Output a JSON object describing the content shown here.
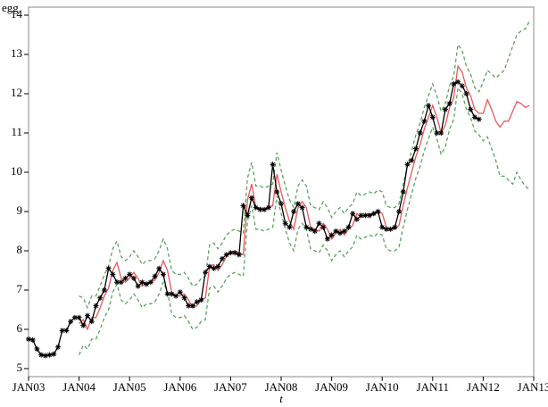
{
  "chart_data": {
    "type": "line",
    "x_label": "t",
    "y_label": "egg",
    "categories": [
      "JAN03",
      null,
      null,
      null,
      null,
      null,
      null,
      null,
      null,
      null,
      null,
      null,
      "JAN04",
      null,
      null,
      null,
      null,
      null,
      null,
      null,
      null,
      null,
      null,
      null,
      "JAN05",
      null,
      null,
      null,
      null,
      null,
      null,
      null,
      null,
      null,
      null,
      null,
      "JAN06",
      null,
      null,
      null,
      null,
      null,
      null,
      null,
      null,
      null,
      null,
      null,
      "JAN07",
      null,
      null,
      null,
      null,
      null,
      null,
      null,
      null,
      null,
      null,
      null,
      "JAN08",
      null,
      null,
      null,
      null,
      null,
      null,
      null,
      null,
      null,
      null,
      null,
      "JAN09",
      null,
      null,
      null,
      null,
      null,
      null,
      null,
      null,
      null,
      null,
      null,
      "JAN10",
      null,
      null,
      null,
      null,
      null,
      null,
      null,
      null,
      null,
      null,
      null,
      "JAN11",
      null,
      null,
      null,
      null,
      null,
      null,
      null,
      null,
      null,
      null,
      null,
      "JAN12",
      null,
      null,
      null,
      null,
      null,
      null,
      null,
      null,
      null,
      null,
      null,
      "JAN13"
    ],
    "ylim": [
      4.8,
      14.2
    ],
    "yticks": [
      5,
      6,
      7,
      8,
      9,
      10,
      11,
      12,
      13,
      14
    ],
    "series": [
      {
        "color": "#000000",
        "marker": "star",
        "dashed": false,
        "values": [
          5.75,
          5.73,
          5.5,
          5.35,
          5.33,
          5.35,
          5.37,
          5.55,
          5.97,
          5.97,
          6.2,
          6.3,
          6.3,
          6.1,
          6.35,
          6.2,
          6.6,
          6.8,
          7.0,
          7.55,
          7.4,
          7.2,
          7.2,
          7.3,
          7.4,
          7.3,
          7.1,
          7.2,
          7.15,
          7.2,
          7.35,
          7.55,
          7.4,
          6.9,
          6.9,
          6.85,
          6.95,
          6.8,
          6.6,
          6.6,
          6.7,
          6.75,
          7.45,
          7.6,
          7.55,
          7.6,
          7.8,
          7.9,
          7.95,
          7.95,
          7.9,
          9.15,
          8.9,
          9.35,
          9.1,
          9.05,
          9.05,
          9.1,
          10.2,
          9.5,
          9.2,
          8.7,
          8.6,
          9.0,
          9.2,
          9.1,
          8.6,
          8.55,
          8.5,
          8.7,
          8.6,
          8.3,
          8.4,
          8.5,
          8.45,
          8.5,
          8.6,
          8.95,
          8.8,
          8.9,
          8.9,
          8.9,
          8.95,
          9.0,
          8.6,
          8.55,
          8.55,
          8.6,
          9.0,
          9.5,
          10.2,
          10.3,
          10.6,
          11.0,
          11.3,
          11.7,
          11.4,
          11.0,
          11.0,
          11.6,
          11.75,
          12.25,
          12.3,
          12.2,
          12.0,
          11.6,
          11.4,
          11.35,
          null,
          null,
          null,
          null,
          null,
          null,
          null,
          null,
          null,
          null,
          null,
          null,
          null
        ]
      },
      {
        "color": "#e8585b",
        "dashed": false,
        "values": [
          null,
          null,
          null,
          null,
          null,
          null,
          null,
          null,
          null,
          null,
          null,
          null,
          6.15,
          6.25,
          6.0,
          6.3,
          6.3,
          6.55,
          6.85,
          7.05,
          7.5,
          7.7,
          7.3,
          7.2,
          7.3,
          7.45,
          7.3,
          7.1,
          7.2,
          7.2,
          7.25,
          7.45,
          7.75,
          7.5,
          6.95,
          6.85,
          6.85,
          6.9,
          6.75,
          6.55,
          6.6,
          6.75,
          6.8,
          7.6,
          7.65,
          7.5,
          7.65,
          7.85,
          7.95,
          8.0,
          7.95,
          7.9,
          9.3,
          9.7,
          9.1,
          9.1,
          9.05,
          9.1,
          9.15,
          9.95,
          9.5,
          9.1,
          8.75,
          8.55,
          9.1,
          9.25,
          9.1,
          8.6,
          8.55,
          8.5,
          8.7,
          8.55,
          8.3,
          8.45,
          8.55,
          8.4,
          8.55,
          8.65,
          8.95,
          8.85,
          8.9,
          8.95,
          8.9,
          9.0,
          8.95,
          8.6,
          8.55,
          8.55,
          8.65,
          9.15,
          9.6,
          10.0,
          10.4,
          10.7,
          11.1,
          11.4,
          11.7,
          11.4,
          11.0,
          11.2,
          11.65,
          11.9,
          12.7,
          12.55,
          12.15,
          11.95,
          11.6,
          11.5,
          11.5,
          11.85,
          11.6,
          11.3,
          11.15,
          11.3,
          11.3,
          11.55,
          11.8,
          11.75,
          11.65,
          11.7,
          null
        ]
      },
      {
        "color": "#5aa55a",
        "dashed": true,
        "values": [
          null,
          null,
          null,
          null,
          null,
          null,
          null,
          null,
          null,
          null,
          null,
          null,
          6.85,
          6.8,
          6.55,
          6.85,
          6.85,
          7.1,
          7.4,
          7.6,
          8.05,
          8.25,
          7.85,
          7.75,
          7.85,
          8.0,
          7.85,
          7.65,
          7.75,
          7.75,
          7.8,
          8.0,
          8.3,
          8.05,
          7.5,
          7.4,
          7.4,
          7.45,
          7.3,
          7.1,
          7.15,
          7.3,
          7.35,
          8.15,
          8.2,
          8.05,
          8.2,
          8.4,
          8.5,
          8.55,
          8.5,
          8.45,
          9.85,
          10.25,
          9.65,
          9.65,
          9.6,
          9.65,
          9.7,
          10.5,
          10.05,
          9.65,
          9.3,
          9.1,
          9.65,
          9.8,
          9.65,
          9.15,
          9.1,
          9.05,
          9.25,
          9.1,
          8.85,
          9.0,
          9.1,
          8.95,
          9.1,
          9.2,
          9.5,
          9.4,
          9.45,
          9.5,
          9.45,
          9.55,
          9.5,
          9.15,
          9.1,
          9.1,
          9.2,
          9.7,
          10.15,
          10.55,
          10.95,
          11.25,
          11.65,
          11.95,
          12.25,
          11.95,
          11.55,
          11.75,
          12.2,
          12.45,
          13.25,
          13.1,
          12.7,
          12.5,
          12.15,
          12.05,
          12.3,
          12.6,
          12.5,
          12.4,
          12.5,
          12.6,
          12.9,
          13.2,
          13.5,
          13.6,
          13.65,
          13.85,
          null
        ]
      },
      {
        "color": "#5aa55a",
        "dashed": true,
        "values": [
          null,
          null,
          null,
          null,
          null,
          null,
          null,
          null,
          null,
          null,
          null,
          null,
          5.35,
          5.6,
          5.5,
          5.75,
          5.75,
          6.0,
          6.3,
          6.5,
          6.95,
          7.15,
          6.75,
          6.65,
          6.75,
          6.9,
          6.75,
          6.55,
          6.65,
          6.65,
          6.7,
          6.9,
          7.2,
          6.95,
          6.4,
          6.3,
          6.3,
          6.35,
          6.2,
          6.0,
          6.05,
          6.2,
          6.25,
          7.05,
          7.1,
          6.95,
          7.1,
          7.3,
          7.4,
          7.45,
          7.4,
          7.35,
          8.75,
          9.15,
          8.55,
          8.55,
          8.5,
          8.55,
          8.6,
          9.4,
          8.95,
          8.55,
          8.2,
          8.0,
          8.55,
          8.7,
          8.55,
          8.05,
          8.0,
          7.95,
          8.15,
          8.0,
          7.75,
          7.9,
          8.0,
          7.85,
          8.0,
          8.1,
          8.4,
          8.3,
          8.35,
          8.4,
          8.35,
          8.45,
          8.4,
          8.05,
          8.0,
          8.0,
          8.1,
          8.6,
          9.05,
          9.45,
          9.85,
          10.15,
          10.55,
          10.85,
          11.15,
          10.85,
          10.45,
          10.65,
          11.1,
          11.35,
          12.15,
          12.0,
          11.6,
          11.4,
          11.05,
          10.95,
          10.8,
          10.9,
          10.6,
          10.3,
          9.9,
          9.9,
          9.8,
          9.7,
          10.0,
          9.8,
          9.65,
          9.55,
          null
        ]
      }
    ]
  }
}
